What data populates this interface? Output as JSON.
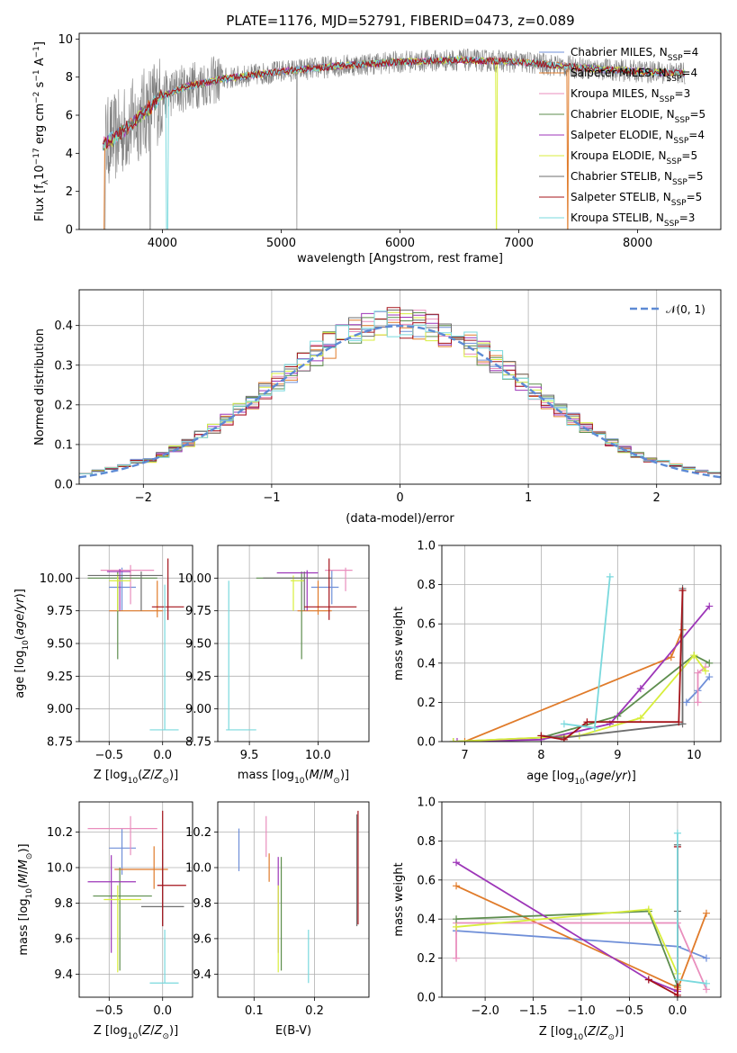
{
  "figure": {
    "title": "PLATE=1176, MJD=52791, FIBERID=0473, z=0.089"
  },
  "colors": {
    "MILES": [
      "#6f8fd8",
      "#e07b2a",
      "#e98ebd"
    ],
    "ELODIE": [
      "#5e8e4e",
      "#9d36b8",
      "#d8ee3c"
    ],
    "STELIB": [
      "#6e6e6e",
      "#a5131a",
      "#7ad9dd"
    ],
    "spectrum_data": "#808080",
    "normal": "#5d8ad4",
    "grid": "#b0b0b0"
  },
  "models": [
    {
      "label": "Chabrier MILES, N",
      "sub": "SSP",
      "suffix": "=4"
    },
    {
      "label": "Salpeter MILES, N",
      "sub": "SSP",
      "suffix": "=4"
    },
    {
      "label": "Kroupa MILES, N",
      "sub": "SSP",
      "suffix": "=3"
    },
    {
      "label": "Chabrier ELODIE, N",
      "sub": "SSP",
      "suffix": "=5"
    },
    {
      "label": "Salpeter ELODIE, N",
      "sub": "SSP",
      "suffix": "=4"
    },
    {
      "label": "Kroupa ELODIE, N",
      "sub": "SSP",
      "suffix": "=5"
    },
    {
      "label": "Chabrier STELIB, N",
      "sub": "SSP",
      "suffix": "=5"
    },
    {
      "label": "Salpeter STELIB, N",
      "sub": "SSP",
      "suffix": "=5"
    },
    {
      "label": "Kroupa STELIB, N",
      "sub": "SSP",
      "suffix": "=3"
    }
  ],
  "chart_data": [
    {
      "type": "line",
      "title": "PLATE=1176, MJD=52791, FIBERID=0473, z=0.089",
      "xlabel": "wavelength [Angstrom, rest frame]",
      "ylabel": "Flux [f_λ 10^-17 erg cm^-2 s^-1 A^-1]",
      "xlim": [
        3300,
        8700
      ],
      "ylim": [
        0,
        10.3
      ],
      "xticks": [
        "4000",
        "5000",
        "6000",
        "7000",
        "8000"
      ],
      "yticks": [
        "0",
        "2",
        "4",
        "6",
        "8",
        "10"
      ],
      "continuum": {
        "x": [
          3500,
          3600,
          3800,
          4000,
          4200,
          4500,
          5000,
          5500,
          6000,
          6500,
          7000,
          7500,
          8000,
          8400
        ],
        "y": [
          4.5,
          4.8,
          5.9,
          7.0,
          7.5,
          7.9,
          8.3,
          8.6,
          8.8,
          8.9,
          8.8,
          8.5,
          8.3,
          8.2
        ]
      },
      "legend": "upper right"
    },
    {
      "type": "line",
      "xlabel": "(data-model)/error",
      "ylabel": "Normed distribution",
      "xlim": [
        -2.5,
        2.5
      ],
      "ylim": [
        0,
        0.49
      ],
      "xticks": [
        "−2",
        "−1",
        "0",
        "1",
        "2"
      ],
      "yticks": [
        "0.0",
        "0.1",
        "0.2",
        "0.3",
        "0.4"
      ],
      "bin_width": 0.1,
      "series": [
        {
          "name": "𝒩(0, 1)",
          "mean": 0,
          "sigma": 1
        }
      ],
      "legend": "upper right"
    },
    {
      "type": "scatter",
      "xlabel": "Z [log10(Z/Z⊙)]",
      "ylabel": "age [log10(age/yr)]",
      "xlim": [
        -0.78,
        0.28
      ],
      "ylim": [
        8.75,
        10.25
      ],
      "xticks": [
        "−0.5",
        "0.0"
      ],
      "yticks": [
        "8.75",
        "9.00",
        "9.25",
        "9.50",
        "9.75",
        "10.00"
      ],
      "points": [
        {
          "x": -0.38,
          "y": 9.93,
          "ex": [
            -0.5,
            -0.25
          ],
          "ey": [
            9.75,
            10.08
          ]
        },
        {
          "x": -0.05,
          "y": 9.75,
          "ex": [
            -0.5,
            0.0
          ],
          "ey": [
            9.7,
            9.98
          ]
        },
        {
          "x": -0.3,
          "y": 10.06,
          "ex": [
            -0.58,
            -0.08
          ],
          "ey": [
            9.8,
            10.1
          ]
        },
        {
          "x": -0.42,
          "y": 10.0,
          "ex": [
            -0.7,
            -0.05
          ],
          "ey": [
            9.38,
            10.05
          ]
        },
        {
          "x": -0.4,
          "y": 10.05,
          "ex": [
            -0.52,
            -0.3
          ],
          "ey": [
            9.75,
            10.07
          ]
        },
        {
          "x": -0.42,
          "y": 9.98,
          "ex": [
            -0.5,
            -0.3
          ],
          "ey": [
            9.75,
            10.03
          ]
        },
        {
          "x": -0.2,
          "y": 10.02,
          "ex": [
            -0.7,
            0.0
          ],
          "ey": [
            9.75,
            10.05
          ]
        },
        {
          "x": 0.05,
          "y": 9.78,
          "ex": [
            -0.1,
            0.2
          ],
          "ey": [
            9.68,
            10.15
          ]
        },
        {
          "x": 0.02,
          "y": 8.84,
          "ex": [
            -0.12,
            0.15
          ],
          "ey": [
            8.84,
            9.95
          ]
        }
      ]
    },
    {
      "type": "scatter",
      "xlabel": "mass [log10(M/M⊙)]",
      "ylabel": "",
      "xlim": [
        9.27,
        10.37
      ],
      "ylim": [
        8.75,
        10.25
      ],
      "xticks": [
        "9.5",
        "10.0"
      ],
      "yticks": [
        "8.75",
        "9.00",
        "9.25",
        "9.50",
        "9.75",
        "10.00"
      ],
      "points": [
        {
          "x": 10.1,
          "y": 9.93,
          "ex": [
            9.95,
            10.15
          ],
          "ey": [
            9.8,
            10.06
          ]
        },
        {
          "x": 10.0,
          "y": 9.75,
          "ex": [
            9.85,
            10.1
          ],
          "ey": [
            9.72,
            9.98
          ]
        },
        {
          "x": 10.2,
          "y": 10.06,
          "ex": [
            10.05,
            10.25
          ],
          "ey": [
            9.9,
            10.08
          ]
        },
        {
          "x": 9.88,
          "y": 10.0,
          "ex": [
            9.55,
            10.0
          ],
          "ey": [
            9.38,
            10.05
          ]
        },
        {
          "x": 9.92,
          "y": 10.04,
          "ex": [
            9.7,
            10.0
          ],
          "ey": [
            9.75,
            10.06
          ]
        },
        {
          "x": 9.82,
          "y": 9.98,
          "ex": [
            9.8,
            9.9
          ],
          "ey": [
            9.75,
            10.02
          ]
        },
        {
          "x": 9.9,
          "y": 10.0,
          "ex": [
            9.6,
            10.1
          ],
          "ey": [
            9.75,
            10.05
          ]
        },
        {
          "x": 10.08,
          "y": 9.78,
          "ex": [
            9.9,
            10.28
          ],
          "ey": [
            9.68,
            10.15
          ]
        },
        {
          "x": 9.35,
          "y": 8.84,
          "ex": [
            9.33,
            9.55
          ],
          "ey": [
            8.84,
            9.98
          ]
        }
      ]
    },
    {
      "type": "line",
      "xlabel": "age [log10(age/yr)]",
      "ylabel": "mass weight",
      "xlim": [
        6.7,
        10.35
      ],
      "ylim": [
        0,
        1.0
      ],
      "xticks": [
        "7",
        "8",
        "9",
        "10"
      ],
      "yticks": [
        "0.0",
        "0.2",
        "0.4",
        "0.6",
        "0.8",
        "1.0"
      ],
      "series": [
        {
          "x": [
            9.9,
            10.05,
            10.2
          ],
          "y": [
            0.2,
            0.26,
            0.33
          ]
        },
        {
          "x": [
            7.0,
            9.7,
            9.85
          ],
          "y": [
            0.0,
            0.43,
            0.57
          ]
        },
        {
          "x": [
            10.15,
            10.05,
            10.05
          ],
          "y": [
            0.38,
            0.35,
            0.2
          ]
        },
        {
          "x": [
            6.85,
            8.0,
            9.0,
            10.0,
            10.2
          ],
          "y": [
            0.0,
            0.02,
            0.13,
            0.44,
            0.4
          ]
        },
        {
          "x": [
            6.9,
            8.0,
            8.9,
            9.3,
            10.2
          ],
          "y": [
            0.0,
            0.01,
            0.09,
            0.27,
            0.69
          ]
        },
        {
          "x": [
            6.85,
            8.5,
            9.3,
            10.0,
            10.15
          ],
          "y": [
            0.0,
            0.03,
            0.12,
            0.44,
            0.36
          ]
        },
        {
          "x": [
            8.0,
            8.3,
            9.85,
            9.85
          ],
          "y": [
            0.03,
            0.02,
            0.09,
            0.78
          ]
        },
        {
          "x": [
            8.0,
            8.3,
            8.6,
            9.8,
            9.85
          ],
          "y": [
            0.03,
            0.01,
            0.1,
            0.1,
            0.77
          ]
        },
        {
          "x": [
            8.3,
            8.7,
            8.9
          ],
          "y": [
            0.09,
            0.07,
            0.84
          ]
        }
      ]
    },
    {
      "type": "scatter",
      "xlabel": "Z [log10(Z/Z⊙)]",
      "ylabel": "mass [log10(M/M⊙)]",
      "xlim": [
        -0.78,
        0.28
      ],
      "ylim": [
        9.27,
        10.37
      ],
      "xticks": [
        "−0.5",
        "0.0"
      ],
      "yticks": [
        "9.4",
        "9.6",
        "9.8",
        "10.0",
        "10.2"
      ],
      "points": [
        {
          "x": -0.38,
          "y": 10.11,
          "ex": [
            -0.5,
            -0.25
          ],
          "ey": [
            9.96,
            10.22
          ]
        },
        {
          "x": -0.08,
          "y": 9.99,
          "ex": [
            -0.45,
            0.05
          ],
          "ey": [
            9.88,
            10.12
          ]
        },
        {
          "x": -0.3,
          "y": 10.22,
          "ex": [
            -0.7,
            -0.05
          ],
          "ey": [
            10.07,
            10.29
          ]
        },
        {
          "x": -0.4,
          "y": 9.84,
          "ex": [
            -0.65,
            -0.1
          ],
          "ey": [
            9.42,
            10.0
          ]
        },
        {
          "x": -0.48,
          "y": 9.92,
          "ex": [
            -0.7,
            -0.25
          ],
          "ey": [
            9.52,
            10.07
          ]
        },
        {
          "x": -0.42,
          "y": 9.82,
          "ex": [
            -0.55,
            -0.2
          ],
          "ey": [
            9.41,
            9.9
          ]
        },
        {
          "x": 0.0,
          "y": 9.78,
          "ex": [
            -0.2,
            0.2
          ],
          "ey": [
            9.67,
            10.1
          ]
        },
        {
          "x": 0.0,
          "y": 9.9,
          "ex": [
            -0.05,
            0.22
          ],
          "ey": [
            9.67,
            10.32
          ]
        },
        {
          "x": 0.02,
          "y": 9.35,
          "ex": [
            -0.12,
            0.15
          ],
          "ey": [
            9.35,
            9.65
          ]
        }
      ]
    },
    {
      "type": "scatter",
      "xlabel": "E(B-V)",
      "ylabel": "",
      "xlim": [
        0.04,
        0.29
      ],
      "ylim": [
        9.27,
        10.37
      ],
      "xticks": [
        "0.1",
        "0.2"
      ],
      "yticks": [
        "9.4",
        "9.6",
        "9.8",
        "10.0",
        "10.2"
      ],
      "points": [
        {
          "x": 0.075,
          "y": 10.11,
          "ey": [
            9.98,
            10.22
          ]
        },
        {
          "x": 0.125,
          "y": 9.99,
          "ey": [
            9.92,
            10.08
          ]
        },
        {
          "x": 0.12,
          "y": 10.22,
          "ey": [
            10.06,
            10.29
          ]
        },
        {
          "x": 0.145,
          "y": 9.84,
          "ey": [
            9.42,
            10.06
          ]
        },
        {
          "x": 0.14,
          "y": 9.92,
          "ey": [
            9.52,
            10.06
          ]
        },
        {
          "x": 0.14,
          "y": 9.82,
          "ey": [
            9.41,
            9.9
          ]
        },
        {
          "x": 0.27,
          "y": 9.9,
          "ey": [
            9.67,
            10.3
          ]
        },
        {
          "x": 0.272,
          "y": 9.9,
          "ey": [
            9.68,
            10.32
          ]
        },
        {
          "x": 0.19,
          "y": 9.35,
          "ey": [
            9.35,
            9.65
          ]
        }
      ]
    },
    {
      "type": "line",
      "xlabel": "Z [log10(Z/Z⊙)]",
      "ylabel": "mass weight",
      "xlim": [
        -2.45,
        0.45
      ],
      "ylim": [
        0,
        1.0
      ],
      "xticks": [
        "−2.0",
        "−1.5",
        "−1.0",
        "−0.5",
        "0.0"
      ],
      "yticks": [
        "0.0",
        "0.2",
        "0.4",
        "0.6",
        "0.8",
        "1.0"
      ],
      "series": [
        {
          "x": [
            -2.3,
            -2.3,
            0.0,
            0.3
          ],
          "y": [
            0.34,
            0.34,
            0.26,
            0.2
          ]
        },
        {
          "x": [
            -2.3,
            0.0,
            0.0,
            0.3
          ],
          "y": [
            0.57,
            0.05,
            0.04,
            0.43
          ]
        },
        {
          "x": [
            -2.3,
            -2.3,
            0.0,
            0.3
          ],
          "y": [
            0.2,
            0.38,
            0.38,
            0.04
          ]
        },
        {
          "x": [
            -2.3,
            -0.3,
            0.0,
            0.0
          ],
          "y": [
            0.4,
            0.44,
            0.06,
            0.0
          ]
        },
        {
          "x": [
            -2.3,
            -0.3,
            0.0,
            0.0
          ],
          "y": [
            0.69,
            0.09,
            0.03,
            0.0
          ]
        },
        {
          "x": [
            -2.3,
            -0.3,
            0.0,
            0.0
          ],
          "y": [
            0.36,
            0.45,
            0.12,
            0.0
          ]
        },
        {
          "x": [
            0.0,
            0.0,
            0.0
          ],
          "y": [
            0.0,
            0.44,
            0.78
          ]
        },
        {
          "x": [
            -0.3,
            0.0,
            0.0
          ],
          "y": [
            0.09,
            0.01,
            0.77
          ]
        },
        {
          "x": [
            0.0,
            0.0,
            0.3
          ],
          "y": [
            0.84,
            0.09,
            0.07
          ]
        }
      ]
    }
  ]
}
